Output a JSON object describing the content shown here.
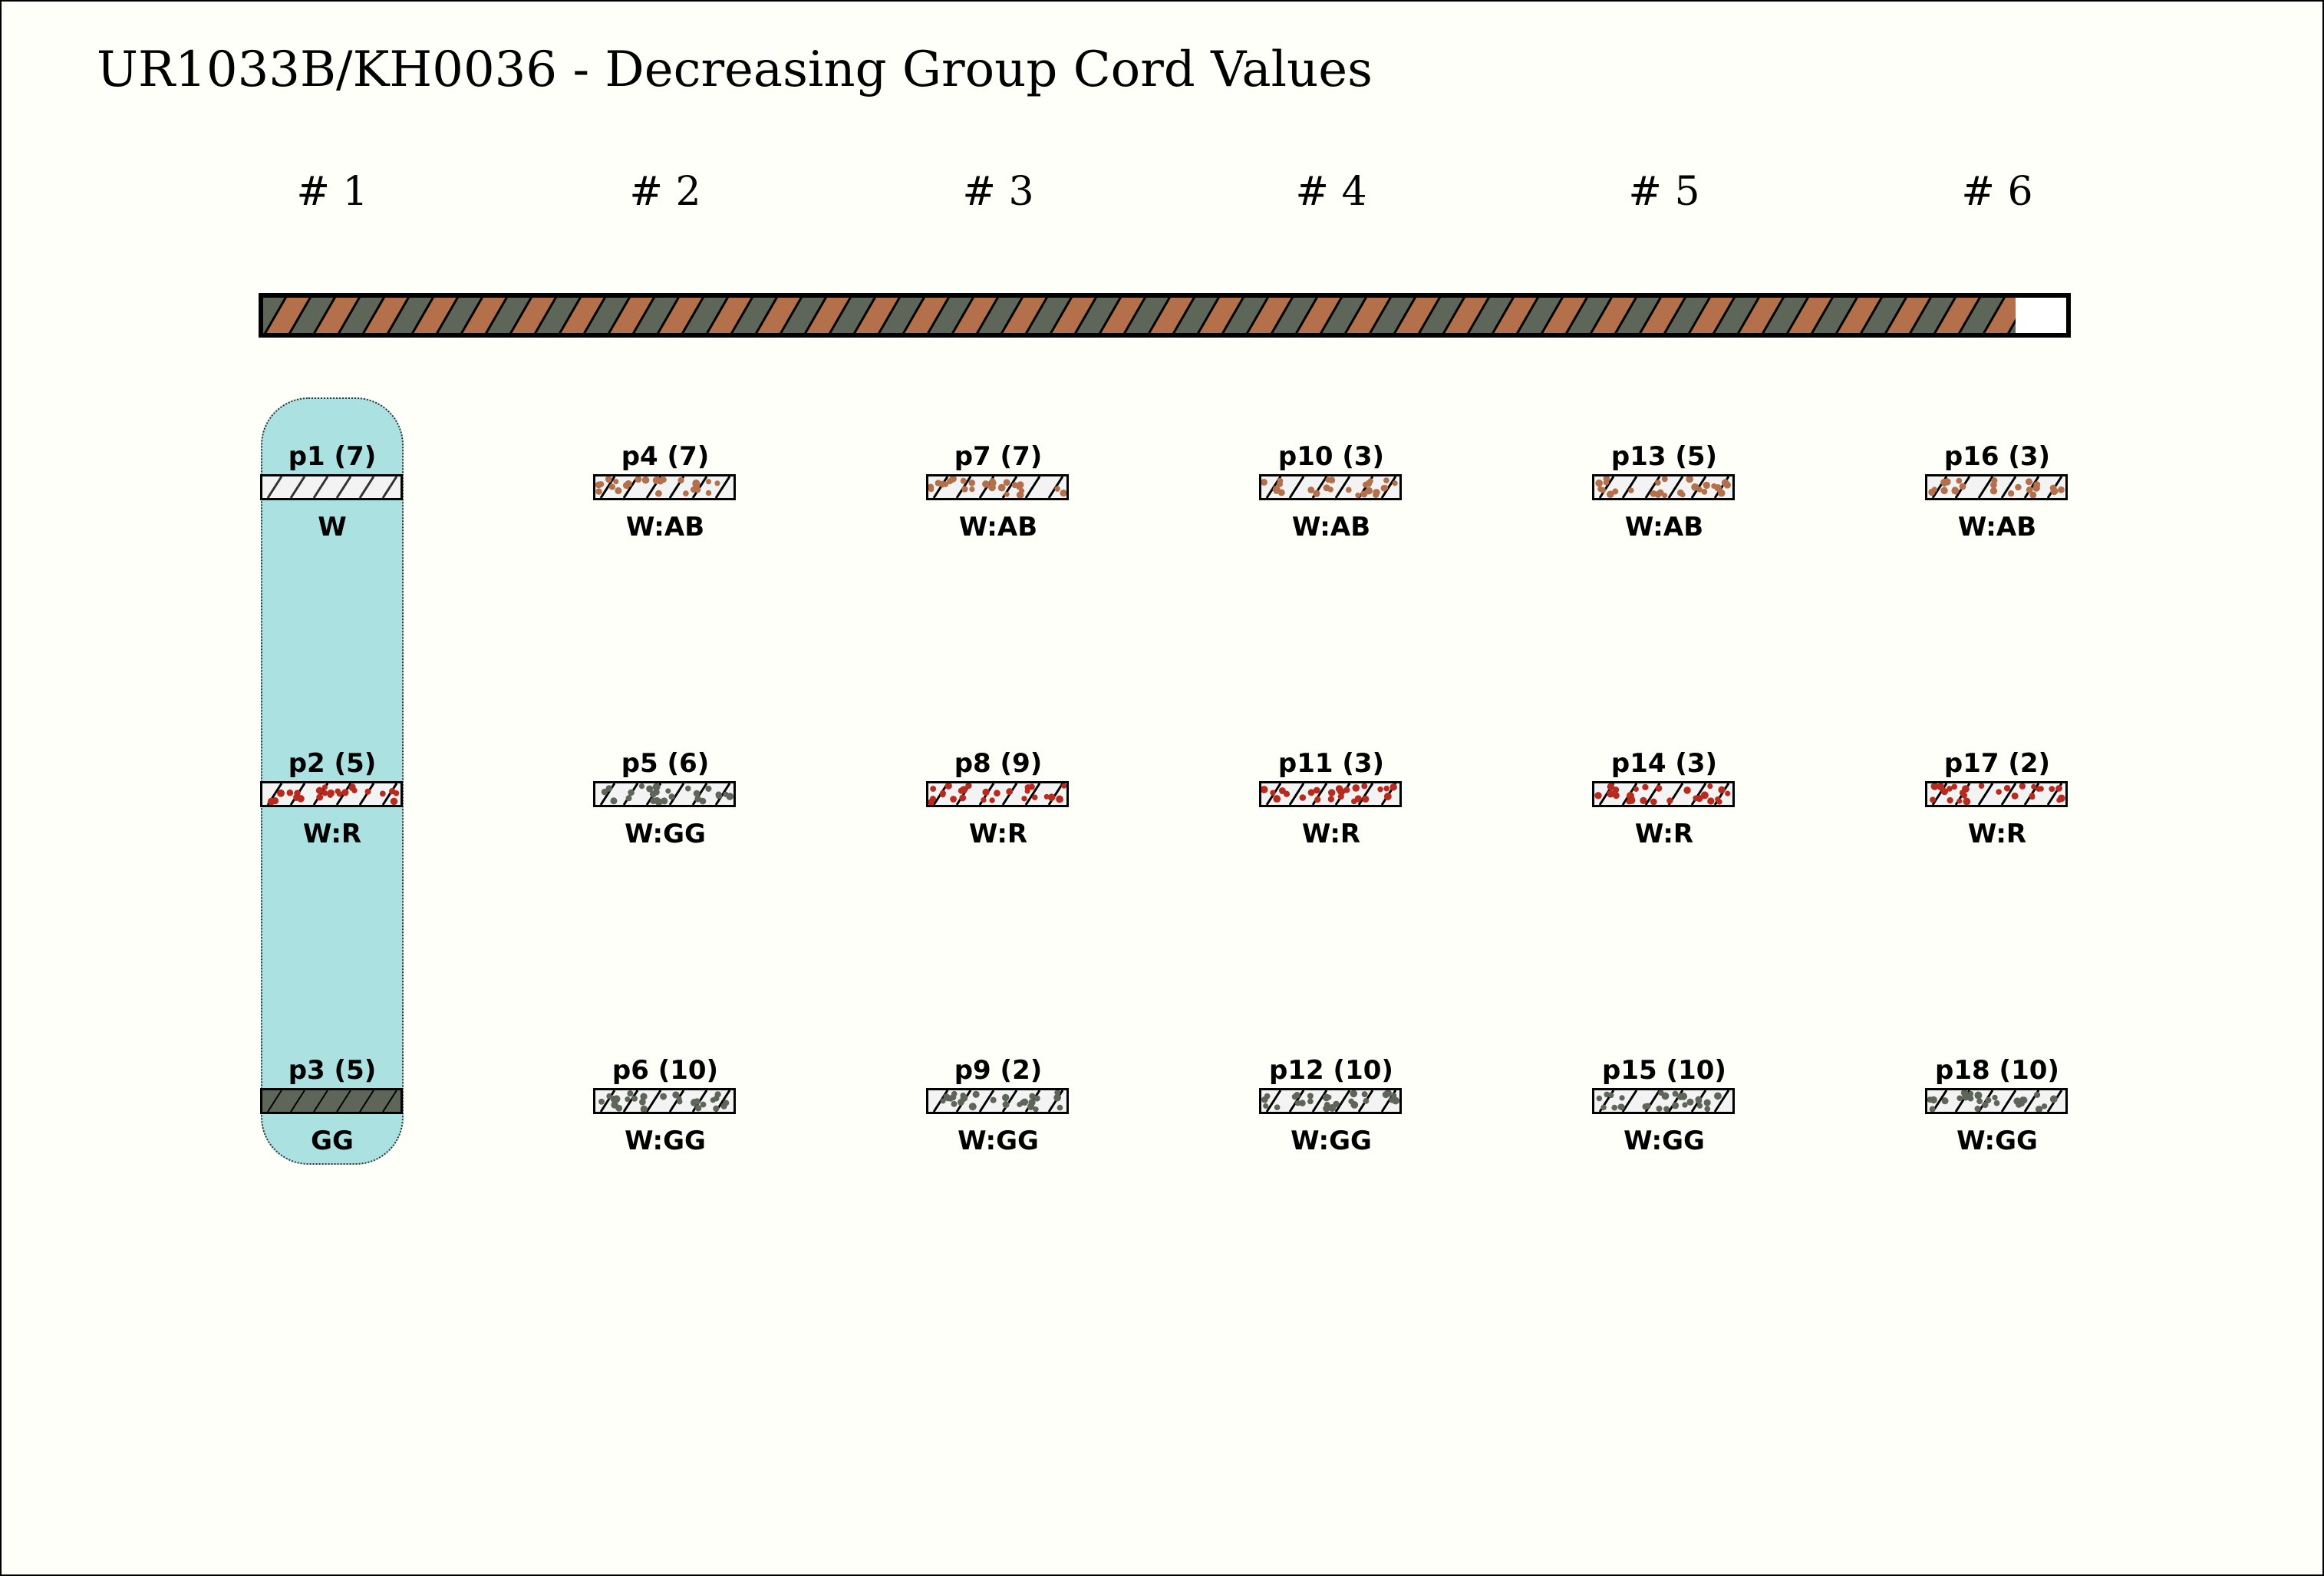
{
  "title": "UR1033B/KH0036 - Decreasing Group Cord Values",
  "colors": {
    "background": "#fffffa",
    "highlight": "#abe2e1",
    "W": "#f3f3f3",
    "AB": "#b3704b",
    "R": "#b92a1e",
    "GG": "#5e6559"
  },
  "groups": [
    {
      "label": "# 1",
      "cords": [
        {
          "label": "p1 (7)",
          "color": "W"
        },
        {
          "label": "p2 (5)",
          "color": "W:R"
        },
        {
          "label": "p3 (5)",
          "color": "GG"
        }
      ]
    },
    {
      "label": "# 2",
      "cords": [
        {
          "label": "p4 (7)",
          "color": "W:AB"
        },
        {
          "label": "p5 (6)",
          "color": "W:GG"
        },
        {
          "label": "p6 (10)",
          "color": "W:GG"
        }
      ]
    },
    {
      "label": "# 3",
      "cords": [
        {
          "label": "p7 (7)",
          "color": "W:AB"
        },
        {
          "label": "p8 (9)",
          "color": "W:R"
        },
        {
          "label": "p9 (2)",
          "color": "W:GG"
        }
      ]
    },
    {
      "label": "# 4",
      "cords": [
        {
          "label": "p10 (3)",
          "color": "W:AB"
        },
        {
          "label": "p11 (3)",
          "color": "W:R"
        },
        {
          "label": "p12 (10)",
          "color": "W:GG"
        }
      ]
    },
    {
      "label": "# 5",
      "cords": [
        {
          "label": "p13 (5)",
          "color": "W:AB"
        },
        {
          "label": "p14 (3)",
          "color": "W:R"
        },
        {
          "label": "p15 (10)",
          "color": "W:GG"
        }
      ]
    },
    {
      "label": "# 6",
      "cords": [
        {
          "label": "p16 (3)",
          "color": "W:AB"
        },
        {
          "label": "p17 (2)",
          "color": "W:R"
        },
        {
          "label": "p18 (10)",
          "color": "W:GG"
        }
      ]
    }
  ]
}
